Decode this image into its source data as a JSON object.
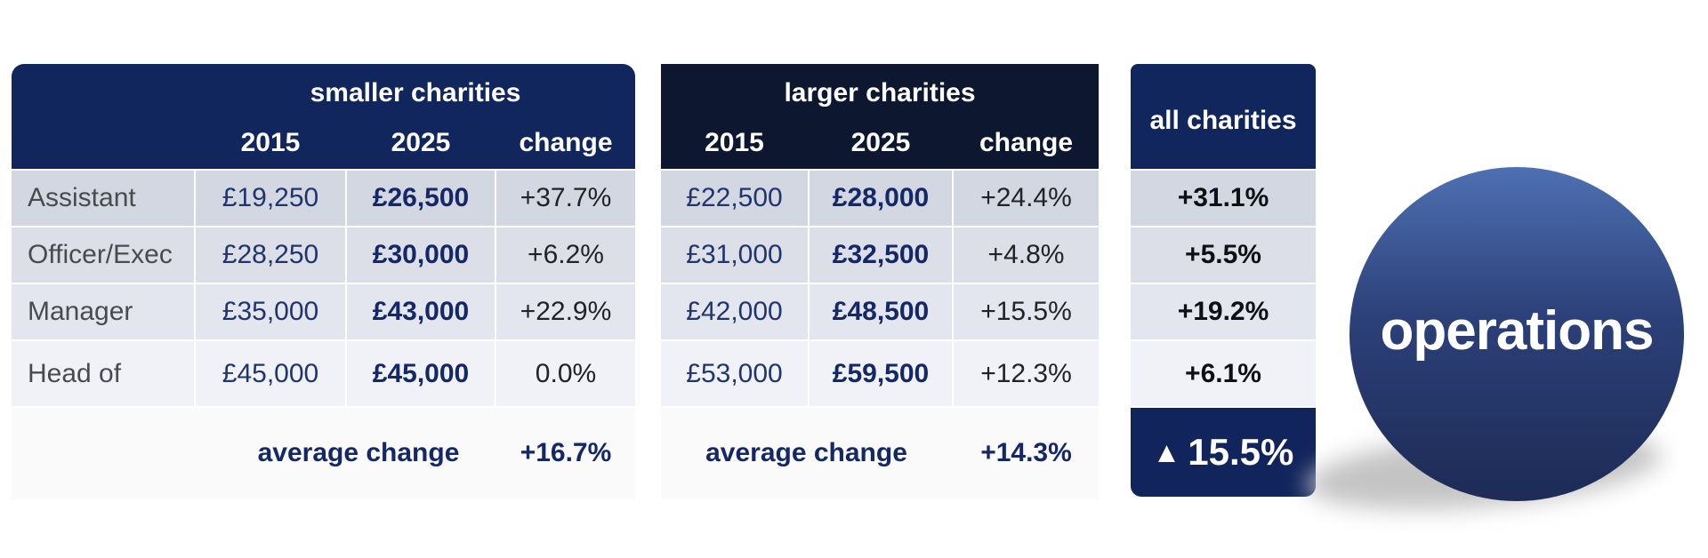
{
  "colors": {
    "header_navy": "#12265e",
    "header_dark_navy": "#0d1830",
    "summary_navy": "#11245c",
    "row_bg_1": "#d3d7e1",
    "row_bg_2": "#dcdfe8",
    "row_bg_3": "#e4e6ef",
    "row_bg_4": "#f1f2f7",
    "value_navy": "#142867",
    "sphere_top": "#4e70b2",
    "sphere_bottom": "#1d2b55"
  },
  "tables": {
    "smaller": {
      "title": "smaller charities",
      "columns": [
        "2015",
        "2025",
        "change"
      ],
      "rows": [
        {
          "role": "Assistant",
          "y2015": "£19,250",
          "y2025": "£26,500",
          "change": "+37.7%"
        },
        {
          "role": "Officer/Exec",
          "y2015": "£28,250",
          "y2025": "£30,000",
          "change": "+6.2%"
        },
        {
          "role": "Manager",
          "y2015": "£35,000",
          "y2025": "£43,000",
          "change": "+22.9%"
        },
        {
          "role": "Head of",
          "y2015": "£45,000",
          "y2025": "£45,000",
          "change": "0.0%"
        }
      ],
      "average_label": "average change",
      "average_value": "+16.7%"
    },
    "larger": {
      "title": "larger charities",
      "columns": [
        "2015",
        "2025",
        "change"
      ],
      "rows": [
        {
          "y2015": "£22,500",
          "y2025": "£28,000",
          "change": "+24.4%"
        },
        {
          "y2015": "£31,000",
          "y2025": "£32,500",
          "change": "+4.8%"
        },
        {
          "y2015": "£42,000",
          "y2025": "£48,500",
          "change": "+15.5%"
        },
        {
          "y2015": "£53,000",
          "y2025": "£59,500",
          "change": "+12.3%"
        }
      ],
      "average_label": "average change",
      "average_value": "+14.3%"
    },
    "all": {
      "title": "all charities",
      "values": [
        "+31.1%",
        "+5.5%",
        "+19.2%",
        "+6.1%"
      ],
      "summary_icon": "▲",
      "summary_value": "15.5%"
    }
  },
  "badge": {
    "label": "operations"
  },
  "chart_data": {
    "type": "table",
    "row_labels": [
      "Assistant",
      "Officer/Exec",
      "Manager",
      "Head of"
    ],
    "groups": [
      {
        "name": "smaller charities",
        "columns": [
          "2015",
          "2025",
          "change"
        ],
        "salary_2015": [
          19250,
          28250,
          35000,
          45000
        ],
        "salary_2025": [
          26500,
          30000,
          43000,
          45000
        ],
        "change_pct": [
          37.7,
          6.2,
          22.9,
          0.0
        ],
        "average_change_pct": 16.7
      },
      {
        "name": "larger charities",
        "columns": [
          "2015",
          "2025",
          "change"
        ],
        "salary_2015": [
          22500,
          31000,
          42000,
          53000
        ],
        "salary_2025": [
          28000,
          32500,
          48500,
          59500
        ],
        "change_pct": [
          24.4,
          4.8,
          15.5,
          12.3
        ],
        "average_change_pct": 14.3
      },
      {
        "name": "all charities",
        "change_pct": [
          31.1,
          5.5,
          19.2,
          6.1
        ],
        "overall_change_pct": 15.5
      }
    ],
    "badge": "operations"
  }
}
